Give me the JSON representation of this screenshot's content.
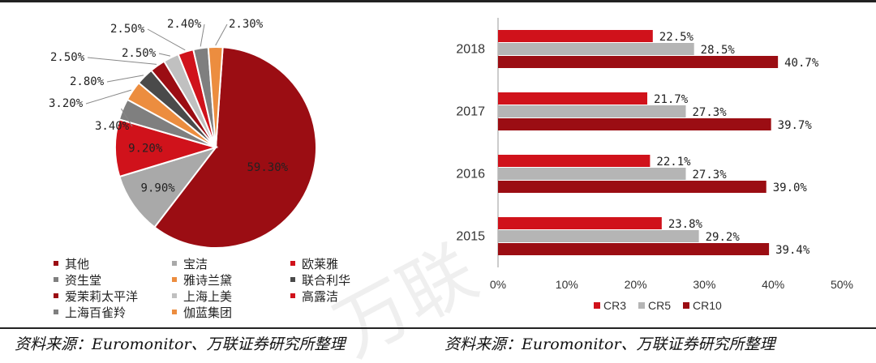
{
  "source_left": "资料来源：Euromonitor、万联证券研究所整理",
  "source_right": "资料来源：Euromonitor、万联证券研究所整理",
  "chart_data": [
    {
      "type": "pie",
      "labels": [
        "其他",
        "宝洁",
        "欧莱雅",
        "资生堂",
        "雅诗兰黛",
        "联合利华",
        "爱茉莉太平洋",
        "上海上美",
        "高露洁",
        "上海百雀羚",
        "伽蓝集团"
      ],
      "values": [
        59.3,
        9.9,
        9.2,
        3.4,
        3.2,
        2.8,
        2.5,
        2.5,
        2.5,
        2.4,
        2.3
      ],
      "value_labels": [
        "59.30%",
        "9.90%",
        "9.20%",
        "3.40%",
        "3.20%",
        "2.80%",
        "2.50%",
        "2.50%",
        "2.50%",
        "2.40%",
        "2.30%"
      ],
      "colors": [
        "#9b0d13",
        "#a9a9a9",
        "#d0121b",
        "#7f7f7f",
        "#ec8d3f",
        "#4a4a4a",
        "#9b0d13",
        "#c0c0c0",
        "#d0121b",
        "#7f7f7f",
        "#ec8d3f"
      ],
      "legend_position": "bottom"
    },
    {
      "type": "bar",
      "orientation": "horizontal",
      "categories": [
        "2018",
        "2017",
        "2016",
        "2015"
      ],
      "series": [
        {
          "name": "CR3",
          "values": [
            22.5,
            21.7,
            22.1,
            23.8
          ],
          "labels": [
            "22.5%",
            "21.7%",
            "22.1%",
            "23.8%"
          ],
          "color": "#d0121b"
        },
        {
          "name": "CR5",
          "values": [
            28.5,
            27.3,
            27.3,
            29.2
          ],
          "labels": [
            "28.5%",
            "27.3%",
            "27.3%",
            "29.2%"
          ],
          "color": "#b5b5b5"
        },
        {
          "name": "CR10",
          "values": [
            40.7,
            39.7,
            39.0,
            39.4
          ],
          "labels": [
            "40.7%",
            "39.7%",
            "39.0%",
            "39.4%"
          ],
          "color": "#9b0d13"
        }
      ],
      "xlim": [
        0,
        50
      ],
      "xticks": [
        "0%",
        "10%",
        "20%",
        "30%",
        "40%",
        "50%"
      ],
      "legend_position": "bottom",
      "grid": false
    }
  ]
}
